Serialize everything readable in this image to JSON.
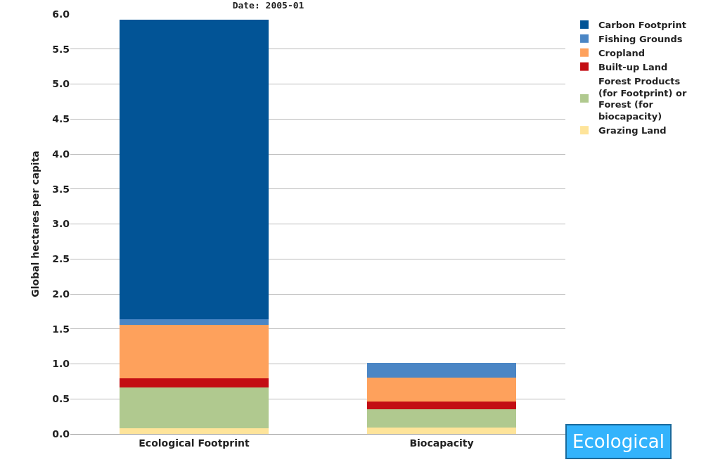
{
  "chart_data": {
    "type": "bar",
    "title": "Date: 2005-01",
    "ylabel": "Global hectares per capita",
    "categories": [
      "Ecological Footprint",
      "Biocapacity"
    ],
    "stacked": true,
    "ylim": [
      0,
      6
    ],
    "yticks": [
      {
        "value": 0,
        "label": "0.0"
      },
      {
        "value": 0.5,
        "label": "0.5"
      },
      {
        "value": 1,
        "label": "1.0"
      },
      {
        "value": 1.5,
        "label": "1.5"
      },
      {
        "value": 2,
        "label": "2.0"
      },
      {
        "value": 2.5,
        "label": "2.5"
      },
      {
        "value": 3,
        "label": "3.0"
      },
      {
        "value": 3.5,
        "label": "3.5"
      },
      {
        "value": 4,
        "label": "4.0"
      },
      {
        "value": 4.5,
        "label": "4.5"
      },
      {
        "value": 5,
        "label": "5.0"
      },
      {
        "value": 5.5,
        "label": "5.5"
      },
      {
        "value": 6,
        "label": "6.0"
      }
    ],
    "grid": "y",
    "legend": "right",
    "annotations": [
      "Ecological"
    ],
    "series": [
      {
        "name": "Grazing Land",
        "color": "#fee49a",
        "values": [
          0.08,
          0.09
        ]
      },
      {
        "name": "Forest Products (for Footprint) or Forest (for biocapacity)",
        "color": "#b0c98f",
        "values": [
          0.58,
          0.26
        ]
      },
      {
        "name": "Built-up Land",
        "color": "#c30d13",
        "values": [
          0.13,
          0.11
        ]
      },
      {
        "name": "Cropland",
        "color": "#fea15c",
        "values": [
          0.77,
          0.34
        ]
      },
      {
        "name": "Fishing Grounds",
        "color": "#4b86c5",
        "values": [
          0.08,
          0.22
        ]
      },
      {
        "name": "Carbon Footprint",
        "color": "#025496",
        "values": [
          4.28,
          0
        ]
      }
    ]
  }
}
